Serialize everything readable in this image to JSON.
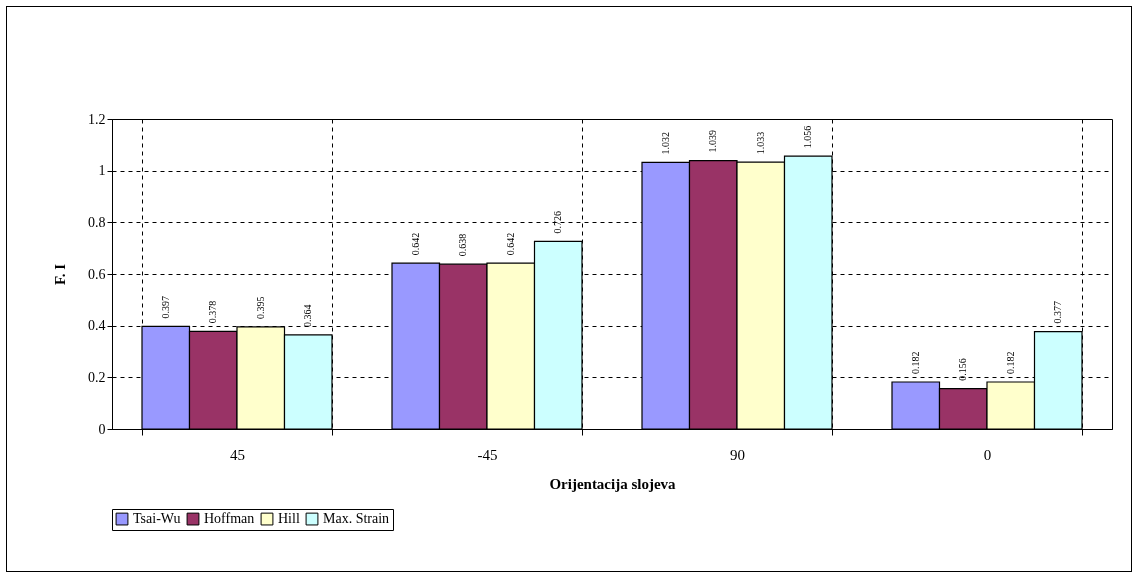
{
  "chart_data": {
    "type": "bar",
    "xlabel": "Orijentacija slojeva",
    "ylabel": "F. I",
    "categories": [
      "45",
      "-45",
      "90",
      "0"
    ],
    "series": [
      {
        "name": "Tsai-Wu",
        "color": "#9999ff",
        "values": [
          0.397,
          0.642,
          1.032,
          0.182
        ]
      },
      {
        "name": "Hoffman",
        "color": "#993366",
        "values": [
          0.378,
          0.638,
          1.039,
          0.156
        ]
      },
      {
        "name": "Hill",
        "color": "#ffffcc",
        "values": [
          0.395,
          0.642,
          1.033,
          0.182
        ]
      },
      {
        "name": "Max. Strain",
        "color": "#ccffff",
        "values": [
          0.364,
          0.726,
          1.056,
          0.377
        ]
      }
    ],
    "ylim": [
      0,
      1.2
    ],
    "yticks": [
      0,
      0.2,
      0.4,
      0.6,
      0.8,
      1,
      1.2
    ],
    "grid": true,
    "legend": "bottom",
    "data_labels": true
  }
}
